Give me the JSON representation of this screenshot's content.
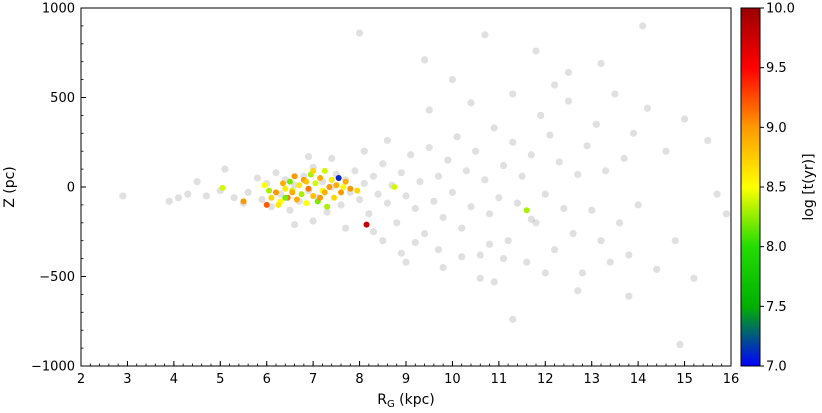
{
  "chart_data": {
    "type": "scatter",
    "xlabel_main": "R",
    "xlabel_sub": "G",
    "xlabel_unit": " (kpc)",
    "ylabel": "Z (pc)",
    "colorbar_label": "log [t(yr)]",
    "xlim": [
      2,
      16
    ],
    "ylim": [
      -1000,
      1000
    ],
    "xticks": [
      "2",
      "3",
      "4",
      "5",
      "6",
      "7",
      "8",
      "9",
      "10",
      "11",
      "12",
      "13",
      "14",
      "15",
      "16"
    ],
    "yticks": [
      "1000",
      "500",
      "0",
      "−500",
      "−1000"
    ],
    "yticks_values": [
      1000,
      500,
      0,
      -500,
      -1000
    ],
    "colorbar_range": [
      7.0,
      10.0
    ],
    "colorbar_ticks": [
      "10.0",
      "9.5",
      "9.0",
      "8.5",
      "8.0",
      "7.5",
      "7.0"
    ],
    "colorbar_ticks_values": [
      10.0,
      9.5,
      9.0,
      8.5,
      8.0,
      7.5,
      7.0
    ],
    "colorbar_colors": [
      "#0000ff",
      "#00b000",
      "#22dd00",
      "#ffff00",
      "#ff9900",
      "#ff0000",
      "#990000"
    ],
    "grid": false,
    "background_series": {
      "name": "",
      "color": "#000000",
      "opacity": 0.12,
      "points": [
        [
          2.9,
          -50
        ],
        [
          3.9,
          -80
        ],
        [
          4.1,
          -60
        ],
        [
          4.3,
          -40
        ],
        [
          4.5,
          30
        ],
        [
          4.7,
          -50
        ],
        [
          5.0,
          -20
        ],
        [
          5.1,
          100
        ],
        [
          5.3,
          -60
        ],
        [
          5.5,
          -90
        ],
        [
          5.6,
          -30
        ],
        [
          5.8,
          50
        ],
        [
          5.9,
          -70
        ],
        [
          6.0,
          20
        ],
        [
          6.1,
          -110
        ],
        [
          6.2,
          80
        ],
        [
          6.3,
          -40
        ],
        [
          6.4,
          40
        ],
        [
          6.5,
          -130
        ],
        [
          6.6,
          10
        ],
        [
          6.7,
          -80
        ],
        [
          6.8,
          60
        ],
        [
          6.9,
          -20
        ],
        [
          7.0,
          110
        ],
        [
          7.1,
          -60
        ],
        [
          7.2,
          30
        ],
        [
          7.3,
          -140
        ],
        [
          7.4,
          0
        ],
        [
          7.5,
          70
        ],
        [
          7.6,
          -100
        ],
        [
          7.7,
          40
        ],
        [
          7.8,
          -30
        ],
        [
          7.9,
          90
        ],
        [
          8.0,
          -70
        ],
        [
          8.1,
          20
        ],
        [
          8.2,
          -150
        ],
        [
          8.3,
          60
        ],
        [
          8.4,
          -40
        ],
        [
          8.5,
          130
        ],
        [
          8.6,
          -90
        ],
        [
          8.7,
          10
        ],
        [
          8.8,
          -200
        ],
        [
          8.9,
          80
        ],
        [
          9.0,
          -50
        ],
        [
          9.1,
          180
        ],
        [
          9.2,
          -120
        ],
        [
          9.3,
          30
        ],
        [
          9.4,
          -260
        ],
        [
          9.5,
          220
        ],
        [
          9.6,
          -80
        ],
        [
          9.7,
          60
        ],
        [
          9.8,
          -170
        ],
        [
          9.9,
          150
        ],
        [
          10.0,
          -30
        ],
        [
          10.1,
          280
        ],
        [
          10.2,
          -230
        ],
        [
          10.3,
          90
        ],
        [
          10.4,
          -110
        ],
        [
          10.5,
          200
        ],
        [
          10.6,
          -380
        ],
        [
          10.7,
          40
        ],
        [
          10.8,
          -150
        ],
        [
          10.9,
          330
        ],
        [
          11.0,
          -60
        ],
        [
          11.1,
          120
        ],
        [
          11.2,
          -300
        ],
        [
          11.3,
          250
        ],
        [
          11.4,
          -90
        ],
        [
          11.5,
          60
        ],
        [
          11.6,
          -420
        ],
        [
          11.7,
          180
        ],
        [
          11.8,
          -200
        ],
        [
          11.9,
          400
        ],
        [
          12.0,
          -40
        ],
        [
          12.1,
          290
        ],
        [
          12.2,
          -350
        ],
        [
          12.3,
          140
        ],
        [
          12.4,
          -120
        ],
        [
          12.5,
          480
        ],
        [
          12.6,
          -260
        ],
        [
          12.7,
          70
        ],
        [
          12.8,
          -480
        ],
        [
          12.9,
          230
        ],
        [
          13.0,
          -130
        ],
        [
          13.1,
          350
        ],
        [
          13.2,
          -300
        ],
        [
          13.3,
          90
        ],
        [
          13.4,
          -420
        ],
        [
          13.5,
          520
        ],
        [
          13.6,
          -200
        ],
        [
          13.7,
          160
        ],
        [
          13.8,
          -380
        ],
        [
          13.9,
          300
        ],
        [
          14.0,
          -100
        ],
        [
          14.2,
          440
        ],
        [
          14.4,
          -460
        ],
        [
          14.6,
          200
        ],
        [
          14.8,
          -300
        ],
        [
          15.0,
          380
        ],
        [
          15.2,
          -510
        ],
        [
          15.5,
          260
        ],
        [
          15.7,
          -40
        ],
        [
          15.9,
          -150
        ],
        [
          14.9,
          -880
        ],
        [
          11.3,
          -740
        ],
        [
          8.0,
          860
        ],
        [
          9.4,
          710
        ],
        [
          10.7,
          850
        ],
        [
          11.8,
          760
        ],
        [
          14.1,
          900
        ],
        [
          10.2,
          -390
        ],
        [
          10.6,
          -510
        ],
        [
          10.9,
          -530
        ],
        [
          9.8,
          -450
        ],
        [
          8.9,
          -370
        ],
        [
          12.7,
          -580
        ],
        [
          13.8,
          -610
        ],
        [
          12.0,
          -480
        ],
        [
          11.1,
          -400
        ],
        [
          9.2,
          -310
        ],
        [
          6.6,
          -210
        ],
        [
          7.0,
          -190
        ],
        [
          7.7,
          -230
        ],
        [
          8.3,
          -250
        ],
        [
          6.9,
          170
        ],
        [
          7.4,
          160
        ],
        [
          8.1,
          200
        ],
        [
          8.6,
          260
        ],
        [
          9.5,
          430
        ],
        [
          10.4,
          470
        ],
        [
          11.3,
          520
        ],
        [
          12.2,
          570
        ],
        [
          12.5,
          640
        ],
        [
          13.2,
          690
        ],
        [
          10.0,
          600
        ],
        [
          9.0,
          -420
        ],
        [
          8.5,
          -300
        ],
        [
          9.7,
          -350
        ],
        [
          10.8,
          -320
        ],
        [
          11.7,
          -180
        ]
      ]
    },
    "cluster_series": {
      "name": "",
      "points": [
        [
          5.05,
          -5,
          8.4
        ],
        [
          5.5,
          -80,
          9.0
        ],
        [
          5.95,
          10,
          8.5
        ],
        [
          6.0,
          -100,
          9.2
        ],
        [
          6.05,
          -20,
          8.3
        ],
        [
          6.1,
          -60,
          8.7
        ],
        [
          6.2,
          -30,
          9.0
        ],
        [
          6.3,
          -80,
          8.5
        ],
        [
          6.35,
          20,
          8.9
        ],
        [
          6.4,
          -10,
          8.6
        ],
        [
          6.45,
          -60,
          9.1
        ],
        [
          6.5,
          30,
          8.2
        ],
        [
          6.55,
          -20,
          8.4
        ],
        [
          6.6,
          60,
          9.0
        ],
        [
          6.65,
          -70,
          8.9
        ],
        [
          6.7,
          10,
          8.6
        ],
        [
          6.75,
          -40,
          8.3
        ],
        [
          6.8,
          40,
          9.0
        ],
        [
          6.85,
          -90,
          8.5
        ],
        [
          6.9,
          -10,
          9.1
        ],
        [
          6.95,
          70,
          8.3
        ],
        [
          7.0,
          -50,
          8.8
        ],
        [
          7.05,
          20,
          8.4
        ],
        [
          7.1,
          -80,
          8.2
        ],
        [
          7.15,
          50,
          8.9
        ],
        [
          7.2,
          -20,
          8.5
        ],
        [
          7.25,
          90,
          8.4
        ],
        [
          7.3,
          -110,
          8.3
        ],
        [
          7.35,
          0,
          9.0
        ],
        [
          7.4,
          40,
          8.6
        ],
        [
          7.45,
          -60,
          8.7
        ],
        [
          7.5,
          10,
          8.9
        ],
        [
          7.55,
          50,
          7.1
        ],
        [
          7.6,
          -30,
          9.0
        ],
        [
          7.65,
          0,
          8.5
        ],
        [
          7.7,
          30,
          8.9
        ],
        [
          7.8,
          -10,
          9.0
        ],
        [
          7.95,
          -20,
          8.7
        ],
        [
          8.15,
          -210,
          9.8
        ],
        [
          8.75,
          0,
          8.4
        ],
        [
          11.6,
          -130,
          8.3
        ],
        [
          6.25,
          -100,
          8.6
        ],
        [
          6.55,
          -30,
          8.9
        ],
        [
          6.85,
          30,
          8.8
        ],
        [
          7.0,
          90,
          8.7
        ],
        [
          7.25,
          -30,
          8.9
        ],
        [
          7.15,
          -60,
          9.0
        ],
        [
          6.4,
          -60,
          8.2
        ]
      ]
    }
  }
}
